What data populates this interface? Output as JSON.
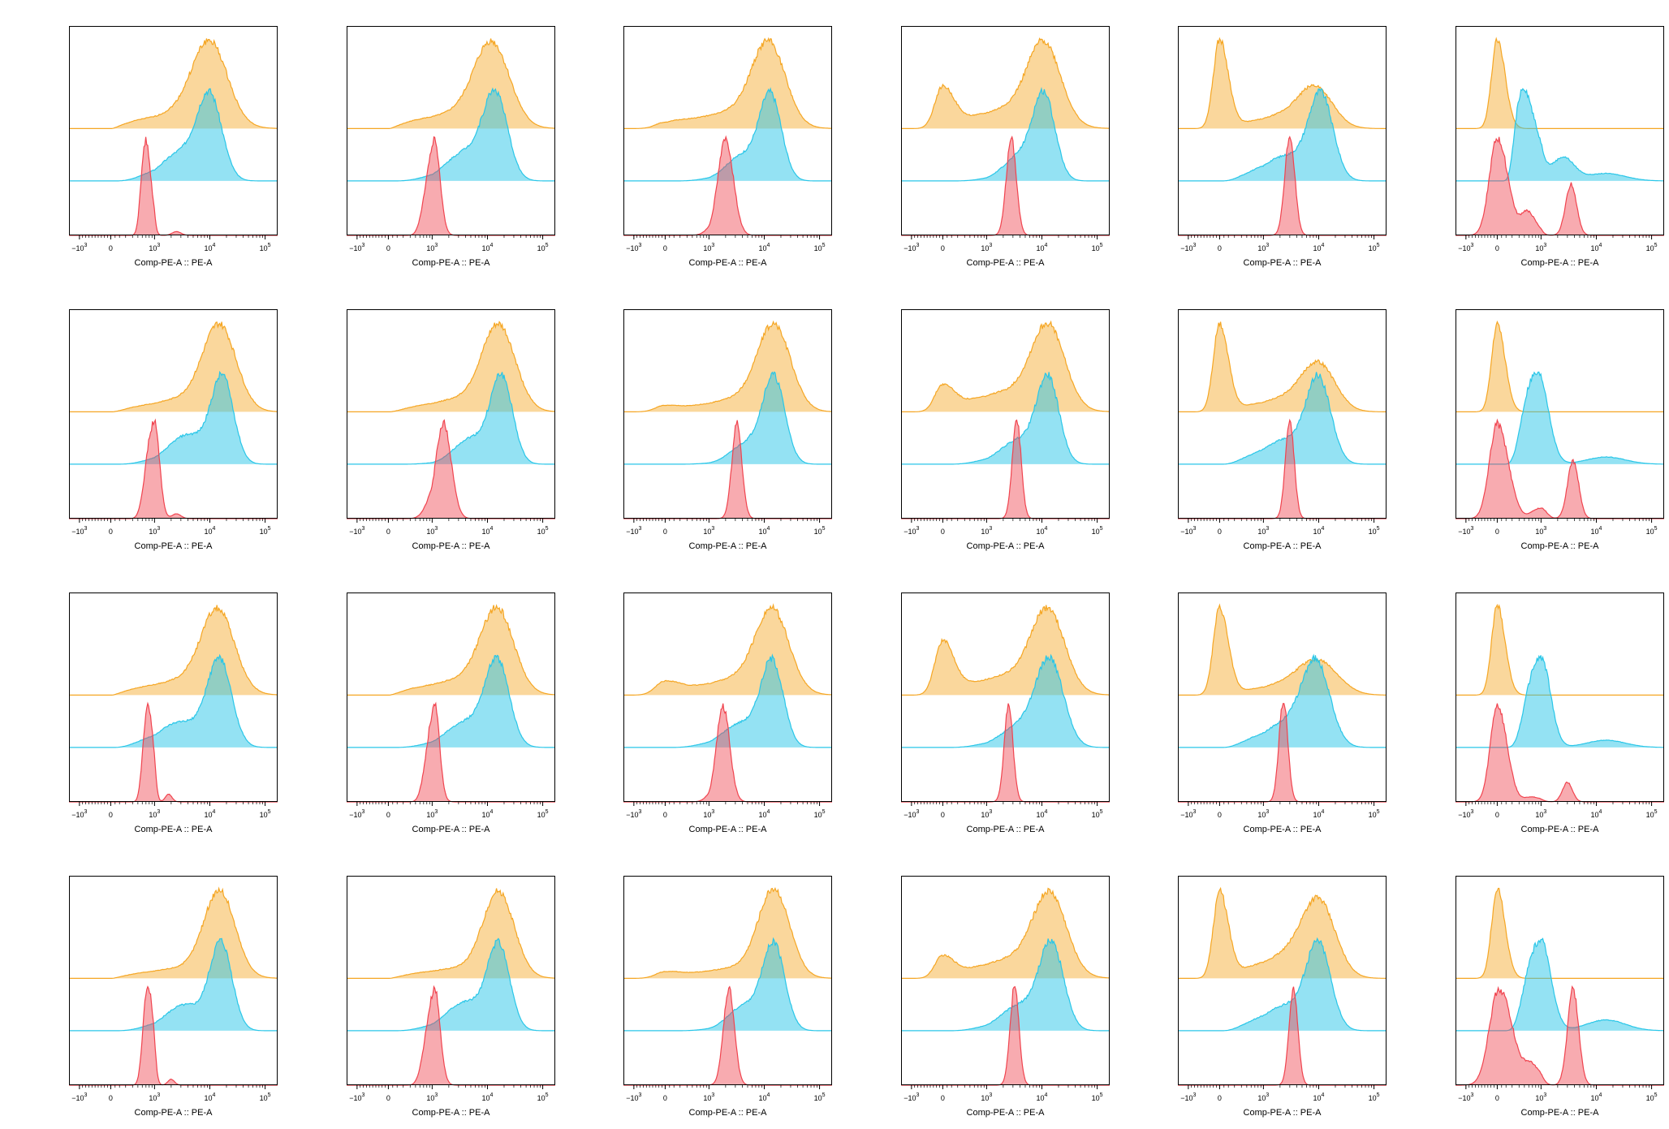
{
  "chart_data": {
    "type": "histogram-overlay",
    "layout": {
      "rows": 4,
      "cols": 6
    },
    "xlabel": "Comp-PE-A :: PE-A",
    "x_scale": "biexponential",
    "x_ticks": [
      "-10^3",
      "0",
      "10^3",
      "10^4",
      "10^5"
    ],
    "xlim": [
      -2000,
      200000
    ],
    "series_colors": {
      "orange": "#f5a623",
      "cyan": "#29c6e8",
      "red": "#f0444f"
    },
    "panels": [
      {
        "orange": [
          {
            "c": 10000,
            "w": 0.32,
            "a": 1.0
          },
          {
            "c": 2500,
            "w": 0.6,
            "a": 0.18
          }
        ],
        "cyan": [
          {
            "c": 10000,
            "w": 0.22,
            "a": 1.0
          },
          {
            "c": 3000,
            "w": 0.35,
            "a": 0.35
          }
        ],
        "red": [
          {
            "c": 800,
            "w": 0.06,
            "a": 1.0
          },
          {
            "c": 2500,
            "w": 0.08,
            "a": 0.04
          }
        ]
      },
      {
        "orange": [
          {
            "c": 12000,
            "w": 0.32,
            "a": 1.0
          },
          {
            "c": 2500,
            "w": 0.6,
            "a": 0.18
          }
        ],
        "cyan": [
          {
            "c": 14000,
            "w": 0.22,
            "a": 1.0
          },
          {
            "c": 4000,
            "w": 0.35,
            "a": 0.35
          }
        ],
        "red": [
          {
            "c": 1100,
            "w": 0.1,
            "a": 1.0
          }
        ]
      },
      {
        "orange": [
          {
            "c": 12000,
            "w": 0.3,
            "a": 1.0
          },
          {
            "c": 2500,
            "w": 0.6,
            "a": 0.2
          },
          {
            "c": 0,
            "w": 300,
            "a": 0.08
          }
        ],
        "cyan": [
          {
            "c": 13000,
            "w": 0.2,
            "a": 1.0
          },
          {
            "c": 4000,
            "w": 0.3,
            "a": 0.3
          }
        ],
        "red": [
          {
            "c": 2000,
            "w": 0.14,
            "a": 1.0
          }
        ]
      },
      {
        "orange": [
          {
            "c": 11000,
            "w": 0.3,
            "a": 1.0
          },
          {
            "c": 2500,
            "w": 0.6,
            "a": 0.25
          },
          {
            "c": 0,
            "w": 250,
            "a": 0.55
          }
        ],
        "cyan": [
          {
            "c": 11000,
            "w": 0.2,
            "a": 1.0
          },
          {
            "c": 4000,
            "w": 0.3,
            "a": 0.3
          }
        ],
        "red": [
          {
            "c": 2800,
            "w": 0.09,
            "a": 1.0
          }
        ]
      },
      {
        "orange": [
          {
            "c": 9000,
            "w": 0.3,
            "a": 0.4
          },
          {
            "c": 2500,
            "w": 0.5,
            "a": 0.15
          },
          {
            "c": 0,
            "w": 200,
            "a": 1.0
          }
        ],
        "cyan": [
          {
            "c": 11000,
            "w": 0.22,
            "a": 1.0
          },
          {
            "c": 2500,
            "w": 0.4,
            "a": 0.3
          }
        ],
        "red": [
          {
            "c": 3000,
            "w": 0.09,
            "a": 1.0
          }
        ]
      },
      {
        "orange": [
          {
            "c": 0,
            "w": 180,
            "a": 1.0
          }
        ],
        "cyan": [
          {
            "c": 600,
            "w": 0.16,
            "a": 1.0
          },
          {
            "c": 2500,
            "w": 0.2,
            "a": 0.25
          },
          {
            "c": 15000,
            "w": 0.35,
            "a": 0.08
          }
        ],
        "red": [
          {
            "c": 0,
            "w": 250,
            "a": 0.85
          },
          {
            "c": 700,
            "w": 0.1,
            "a": 0.2
          },
          {
            "c": 3500,
            "w": 0.1,
            "a": 0.45
          }
        ]
      },
      {
        "orange": [
          {
            "c": 15000,
            "w": 0.3,
            "a": 1.0
          },
          {
            "c": 3000,
            "w": 0.55,
            "a": 0.15
          }
        ],
        "cyan": [
          {
            "c": 17000,
            "w": 0.2,
            "a": 1.0
          },
          {
            "c": 4000,
            "w": 0.35,
            "a": 0.35
          }
        ],
        "red": [
          {
            "c": 1000,
            "w": 0.09,
            "a": 1.0
          },
          {
            "c": 2500,
            "w": 0.08,
            "a": 0.05
          }
        ]
      },
      {
        "orange": [
          {
            "c": 16000,
            "w": 0.3,
            "a": 1.0
          },
          {
            "c": 3000,
            "w": 0.55,
            "a": 0.15
          }
        ],
        "cyan": [
          {
            "c": 18000,
            "w": 0.2,
            "a": 1.0
          },
          {
            "c": 5000,
            "w": 0.3,
            "a": 0.3
          }
        ],
        "red": [
          {
            "c": 1600,
            "w": 0.14,
            "a": 1.0
          }
        ]
      },
      {
        "orange": [
          {
            "c": 15000,
            "w": 0.3,
            "a": 1.0
          },
          {
            "c": 3000,
            "w": 0.55,
            "a": 0.15
          },
          {
            "c": 0,
            "w": 300,
            "a": 0.08
          }
        ],
        "cyan": [
          {
            "c": 15000,
            "w": 0.2,
            "a": 1.0
          },
          {
            "c": 5000,
            "w": 0.3,
            "a": 0.25
          }
        ],
        "red": [
          {
            "c": 3200,
            "w": 0.09,
            "a": 1.0
          }
        ]
      },
      {
        "orange": [
          {
            "c": 13000,
            "w": 0.3,
            "a": 1.0
          },
          {
            "c": 2500,
            "w": 0.6,
            "a": 0.25
          },
          {
            "c": 0,
            "w": 250,
            "a": 0.35
          }
        ],
        "cyan": [
          {
            "c": 13000,
            "w": 0.2,
            "a": 1.0
          },
          {
            "c": 4000,
            "w": 0.35,
            "a": 0.3
          }
        ],
        "red": [
          {
            "c": 3500,
            "w": 0.08,
            "a": 1.0
          }
        ]
      },
      {
        "orange": [
          {
            "c": 10000,
            "w": 0.3,
            "a": 0.5
          },
          {
            "c": 2500,
            "w": 0.5,
            "a": 0.15
          },
          {
            "c": 0,
            "w": 200,
            "a": 1.0
          }
        ],
        "cyan": [
          {
            "c": 10000,
            "w": 0.22,
            "a": 1.0
          },
          {
            "c": 2500,
            "w": 0.4,
            "a": 0.3
          }
        ],
        "red": [
          {
            "c": 3000,
            "w": 0.08,
            "a": 1.0
          }
        ]
      },
      {
        "orange": [
          {
            "c": 0,
            "w": 180,
            "a": 1.0
          }
        ],
        "cyan": [
          {
            "c": 900,
            "w": 0.18,
            "a": 1.0
          },
          {
            "c": 15000,
            "w": 0.35,
            "a": 0.08
          }
        ],
        "red": [
          {
            "c": 0,
            "w": 250,
            "a": 0.9
          },
          {
            "c": 1000,
            "w": 0.1,
            "a": 0.1
          },
          {
            "c": 3800,
            "w": 0.1,
            "a": 0.55
          }
        ]
      },
      {
        "orange": [
          {
            "c": 14000,
            "w": 0.3,
            "a": 1.0
          },
          {
            "c": 3000,
            "w": 0.6,
            "a": 0.18
          }
        ],
        "cyan": [
          {
            "c": 15000,
            "w": 0.22,
            "a": 1.0
          },
          {
            "c": 3000,
            "w": 0.4,
            "a": 0.3
          }
        ],
        "red": [
          {
            "c": 850,
            "w": 0.06,
            "a": 1.0
          },
          {
            "c": 1800,
            "w": 0.06,
            "a": 0.08
          }
        ]
      },
      {
        "orange": [
          {
            "c": 15000,
            "w": 0.3,
            "a": 1.0
          },
          {
            "c": 3000,
            "w": 0.6,
            "a": 0.18
          }
        ],
        "cyan": [
          {
            "c": 15000,
            "w": 0.22,
            "a": 1.0
          },
          {
            "c": 4000,
            "w": 0.35,
            "a": 0.3
          }
        ],
        "red": [
          {
            "c": 1100,
            "w": 0.09,
            "a": 1.0
          }
        ]
      },
      {
        "orange": [
          {
            "c": 14000,
            "w": 0.3,
            "a": 1.0
          },
          {
            "c": 3000,
            "w": 0.6,
            "a": 0.2
          },
          {
            "c": 0,
            "w": 300,
            "a": 0.18
          }
        ],
        "cyan": [
          {
            "c": 14000,
            "w": 0.2,
            "a": 1.0
          },
          {
            "c": 4000,
            "w": 0.35,
            "a": 0.3
          }
        ],
        "red": [
          {
            "c": 1800,
            "w": 0.12,
            "a": 1.0
          }
        ]
      },
      {
        "orange": [
          {
            "c": 13000,
            "w": 0.3,
            "a": 1.0
          },
          {
            "c": 2500,
            "w": 0.6,
            "a": 0.25
          },
          {
            "c": 0,
            "w": 250,
            "a": 0.7
          }
        ],
        "cyan": [
          {
            "c": 14000,
            "w": 0.25,
            "a": 1.0
          },
          {
            "c": 4000,
            "w": 0.35,
            "a": 0.25
          }
        ],
        "red": [
          {
            "c": 2500,
            "w": 0.08,
            "a": 1.0
          }
        ]
      },
      {
        "orange": [
          {
            "c": 10000,
            "w": 0.35,
            "a": 0.35
          },
          {
            "c": 2500,
            "w": 0.5,
            "a": 0.12
          },
          {
            "c": 0,
            "w": 200,
            "a": 1.0
          }
        ],
        "cyan": [
          {
            "c": 9000,
            "w": 0.25,
            "a": 1.0
          },
          {
            "c": 2500,
            "w": 0.4,
            "a": 0.3
          }
        ],
        "red": [
          {
            "c": 2300,
            "w": 0.08,
            "a": 1.0
          }
        ]
      },
      {
        "orange": [
          {
            "c": 0,
            "w": 180,
            "a": 1.0
          }
        ],
        "cyan": [
          {
            "c": 1000,
            "w": 0.17,
            "a": 1.0
          },
          {
            "c": 15000,
            "w": 0.35,
            "a": 0.08
          }
        ],
        "red": [
          {
            "c": 0,
            "w": 220,
            "a": 1.0
          },
          {
            "c": 800,
            "w": 0.1,
            "a": 0.05
          },
          {
            "c": 3000,
            "w": 0.09,
            "a": 0.2
          }
        ]
      },
      {
        "orange": [
          {
            "c": 15000,
            "w": 0.28,
            "a": 1.0
          },
          {
            "c": 3000,
            "w": 0.6,
            "a": 0.12
          }
        ],
        "cyan": [
          {
            "c": 16000,
            "w": 0.2,
            "a": 1.0
          },
          {
            "c": 3500,
            "w": 0.35,
            "a": 0.3
          }
        ],
        "red": [
          {
            "c": 850,
            "w": 0.06,
            "a": 1.0
          },
          {
            "c": 2000,
            "w": 0.06,
            "a": 0.06
          }
        ]
      },
      {
        "orange": [
          {
            "c": 16000,
            "w": 0.28,
            "a": 1.0
          },
          {
            "c": 3000,
            "w": 0.6,
            "a": 0.12
          }
        ],
        "cyan": [
          {
            "c": 16000,
            "w": 0.2,
            "a": 1.0
          },
          {
            "c": 4000,
            "w": 0.35,
            "a": 0.35
          }
        ],
        "red": [
          {
            "c": 1100,
            "w": 0.1,
            "a": 1.0
          }
        ]
      },
      {
        "orange": [
          {
            "c": 15000,
            "w": 0.28,
            "a": 1.0
          },
          {
            "c": 3000,
            "w": 0.6,
            "a": 0.12
          },
          {
            "c": 0,
            "w": 300,
            "a": 0.08
          }
        ],
        "cyan": [
          {
            "c": 15000,
            "w": 0.2,
            "a": 1.0
          },
          {
            "c": 4500,
            "w": 0.3,
            "a": 0.3
          }
        ],
        "red": [
          {
            "c": 2300,
            "w": 0.1,
            "a": 1.0
          }
        ]
      },
      {
        "orange": [
          {
            "c": 14000,
            "w": 0.3,
            "a": 1.0
          },
          {
            "c": 3000,
            "w": 0.6,
            "a": 0.25
          },
          {
            "c": 0,
            "w": 250,
            "a": 0.3
          }
        ],
        "cyan": [
          {
            "c": 15000,
            "w": 0.22,
            "a": 1.0
          },
          {
            "c": 4000,
            "w": 0.35,
            "a": 0.3
          }
        ],
        "red": [
          {
            "c": 3200,
            "w": 0.08,
            "a": 1.0
          }
        ]
      },
      {
        "orange": [
          {
            "c": 10000,
            "w": 0.3,
            "a": 0.8
          },
          {
            "c": 2500,
            "w": 0.5,
            "a": 0.25
          },
          {
            "c": 0,
            "w": 200,
            "a": 1.0
          }
        ],
        "cyan": [
          {
            "c": 10000,
            "w": 0.22,
            "a": 1.0
          },
          {
            "c": 2500,
            "w": 0.4,
            "a": 0.3
          }
        ],
        "red": [
          {
            "c": 3500,
            "w": 0.08,
            "a": 1.0
          }
        ]
      },
      {
        "orange": [
          {
            "c": 0,
            "w": 180,
            "a": 1.0
          }
        ],
        "cyan": [
          {
            "c": 1000,
            "w": 0.18,
            "a": 1.0
          },
          {
            "c": 15000,
            "w": 0.35,
            "a": 0.12
          }
        ],
        "red": [
          {
            "c": 50,
            "w": 300,
            "a": 0.8
          },
          {
            "c": 800,
            "w": 0.1,
            "a": 0.15
          },
          {
            "c": 3800,
            "w": 0.1,
            "a": 0.8
          }
        ]
      }
    ]
  }
}
